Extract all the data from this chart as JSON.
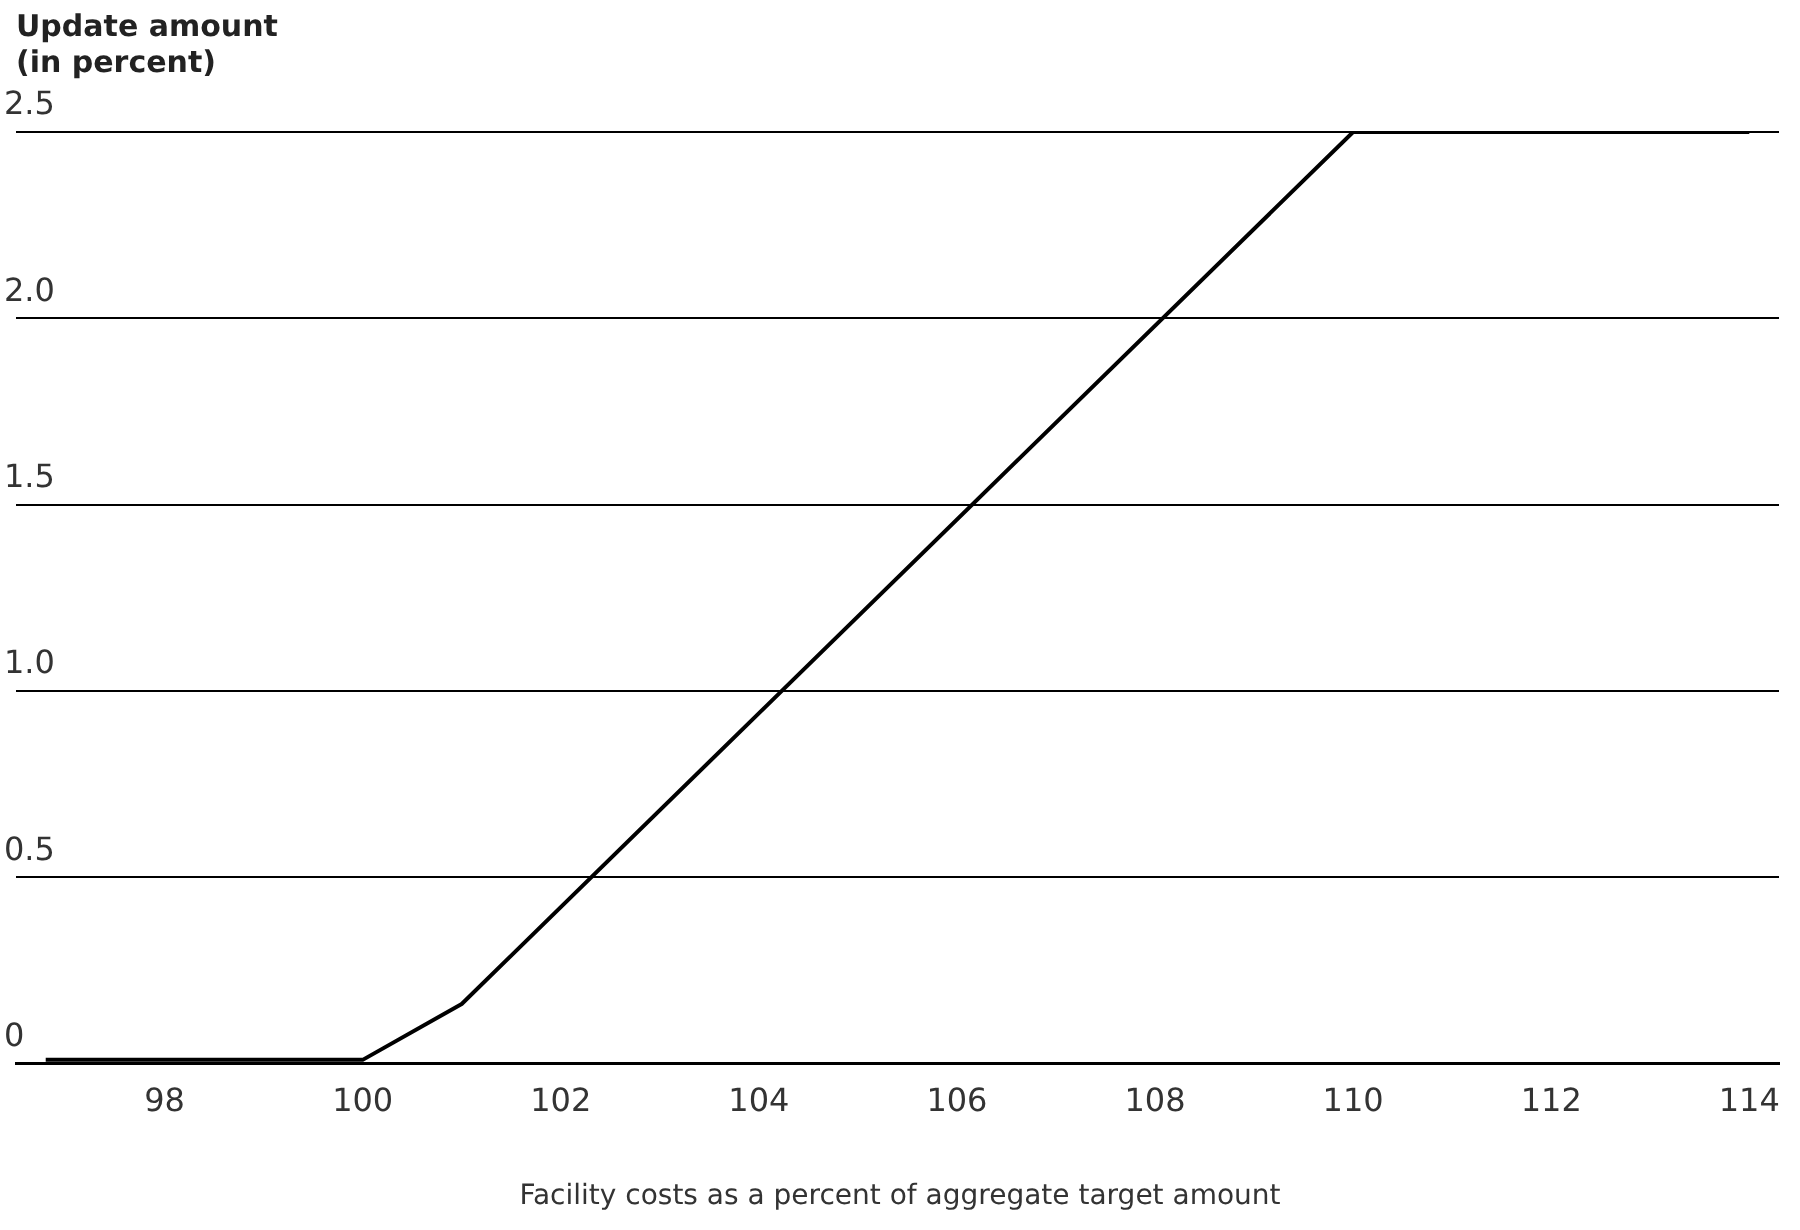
{
  "chart_data": {
    "type": "line",
    "ylabel": "Update amount (in percent)",
    "xlabel": "Facility costs as a percent of aggregate target amount",
    "series": [
      {
        "color": "#000000",
        "x": [
          96.8,
          100,
          101,
          110,
          114
        ],
        "values": [
          0.01,
          0.01,
          0.16,
          2.5,
          2.5
        ]
      }
    ],
    "xlim": [
      96.5,
      114.3
    ],
    "xticks": [
      98,
      100,
      102,
      104,
      106,
      108,
      110,
      112,
      114
    ],
    "ylim": [
      0,
      2.5
    ],
    "yticks": [
      0,
      0.5,
      {
        "value": 1,
        "label": "1.0"
      },
      1.5,
      {
        "value": 2,
        "label": "2.0"
      },
      2.5
    ],
    "grid": "y",
    "legend": false,
    "marker": "none",
    "line_style": "solid"
  }
}
